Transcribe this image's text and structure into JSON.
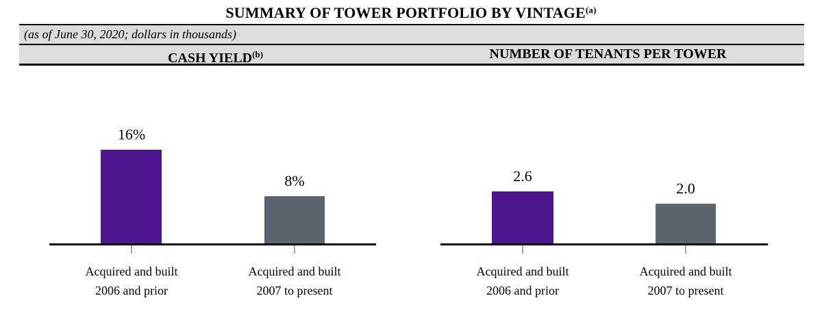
{
  "document": {
    "title": "SUMMARY OF TOWER PORTFOLIO BY VINTAGE",
    "title_footnote": "(a)",
    "as_of_line": "(as of June 30, 2020; dollars in thousands)"
  },
  "sections": {
    "left_header": "CASH YIELD",
    "left_header_footnote": "(b)",
    "right_header": "NUMBER OF TENANTS PER TOWER"
  },
  "colors": {
    "purple": "#4F178F",
    "slate_gray": "#5A6570",
    "header_band": "#DCDCDC",
    "tick": "#A6A6A6",
    "axis": "#0A0A0A"
  },
  "chart_data": [
    {
      "type": "bar",
      "title": "CASH YIELD(b)",
      "categories": [
        "Acquired and built 2006 and prior",
        "Acquired and built 2007 to present"
      ],
      "category_lines": [
        [
          "Acquired and built",
          "2006 and prior"
        ],
        [
          "Acquired and built",
          "2007 to present"
        ]
      ],
      "values": [
        16,
        8
      ],
      "data_labels": [
        "16%",
        "8%"
      ],
      "bar_colors": [
        "#4F178F",
        "#5A6570"
      ],
      "unit": "%",
      "ylim": [
        0,
        18
      ],
      "grid": false,
      "legend": "none",
      "axis_style": "bottom baseline only, gray tick per bar"
    },
    {
      "type": "bar",
      "title": "NUMBER OF TENANTS PER TOWER",
      "categories": [
        "Acquired and built 2006 and prior",
        "Acquired and built 2007 to present"
      ],
      "category_lines": [
        [
          "Acquired and built",
          "2006 and prior"
        ],
        [
          "Acquired and built",
          "2007 to present"
        ]
      ],
      "values": [
        2.6,
        2.0
      ],
      "data_labels": [
        "2.6",
        "2.0"
      ],
      "bar_colors": [
        "#4F178F",
        "#5A6570"
      ],
      "unit": "tenants per tower",
      "ylim": [
        0,
        3
      ],
      "grid": false,
      "legend": "none",
      "axis_style": "bottom baseline only, gray tick per bar"
    }
  ]
}
